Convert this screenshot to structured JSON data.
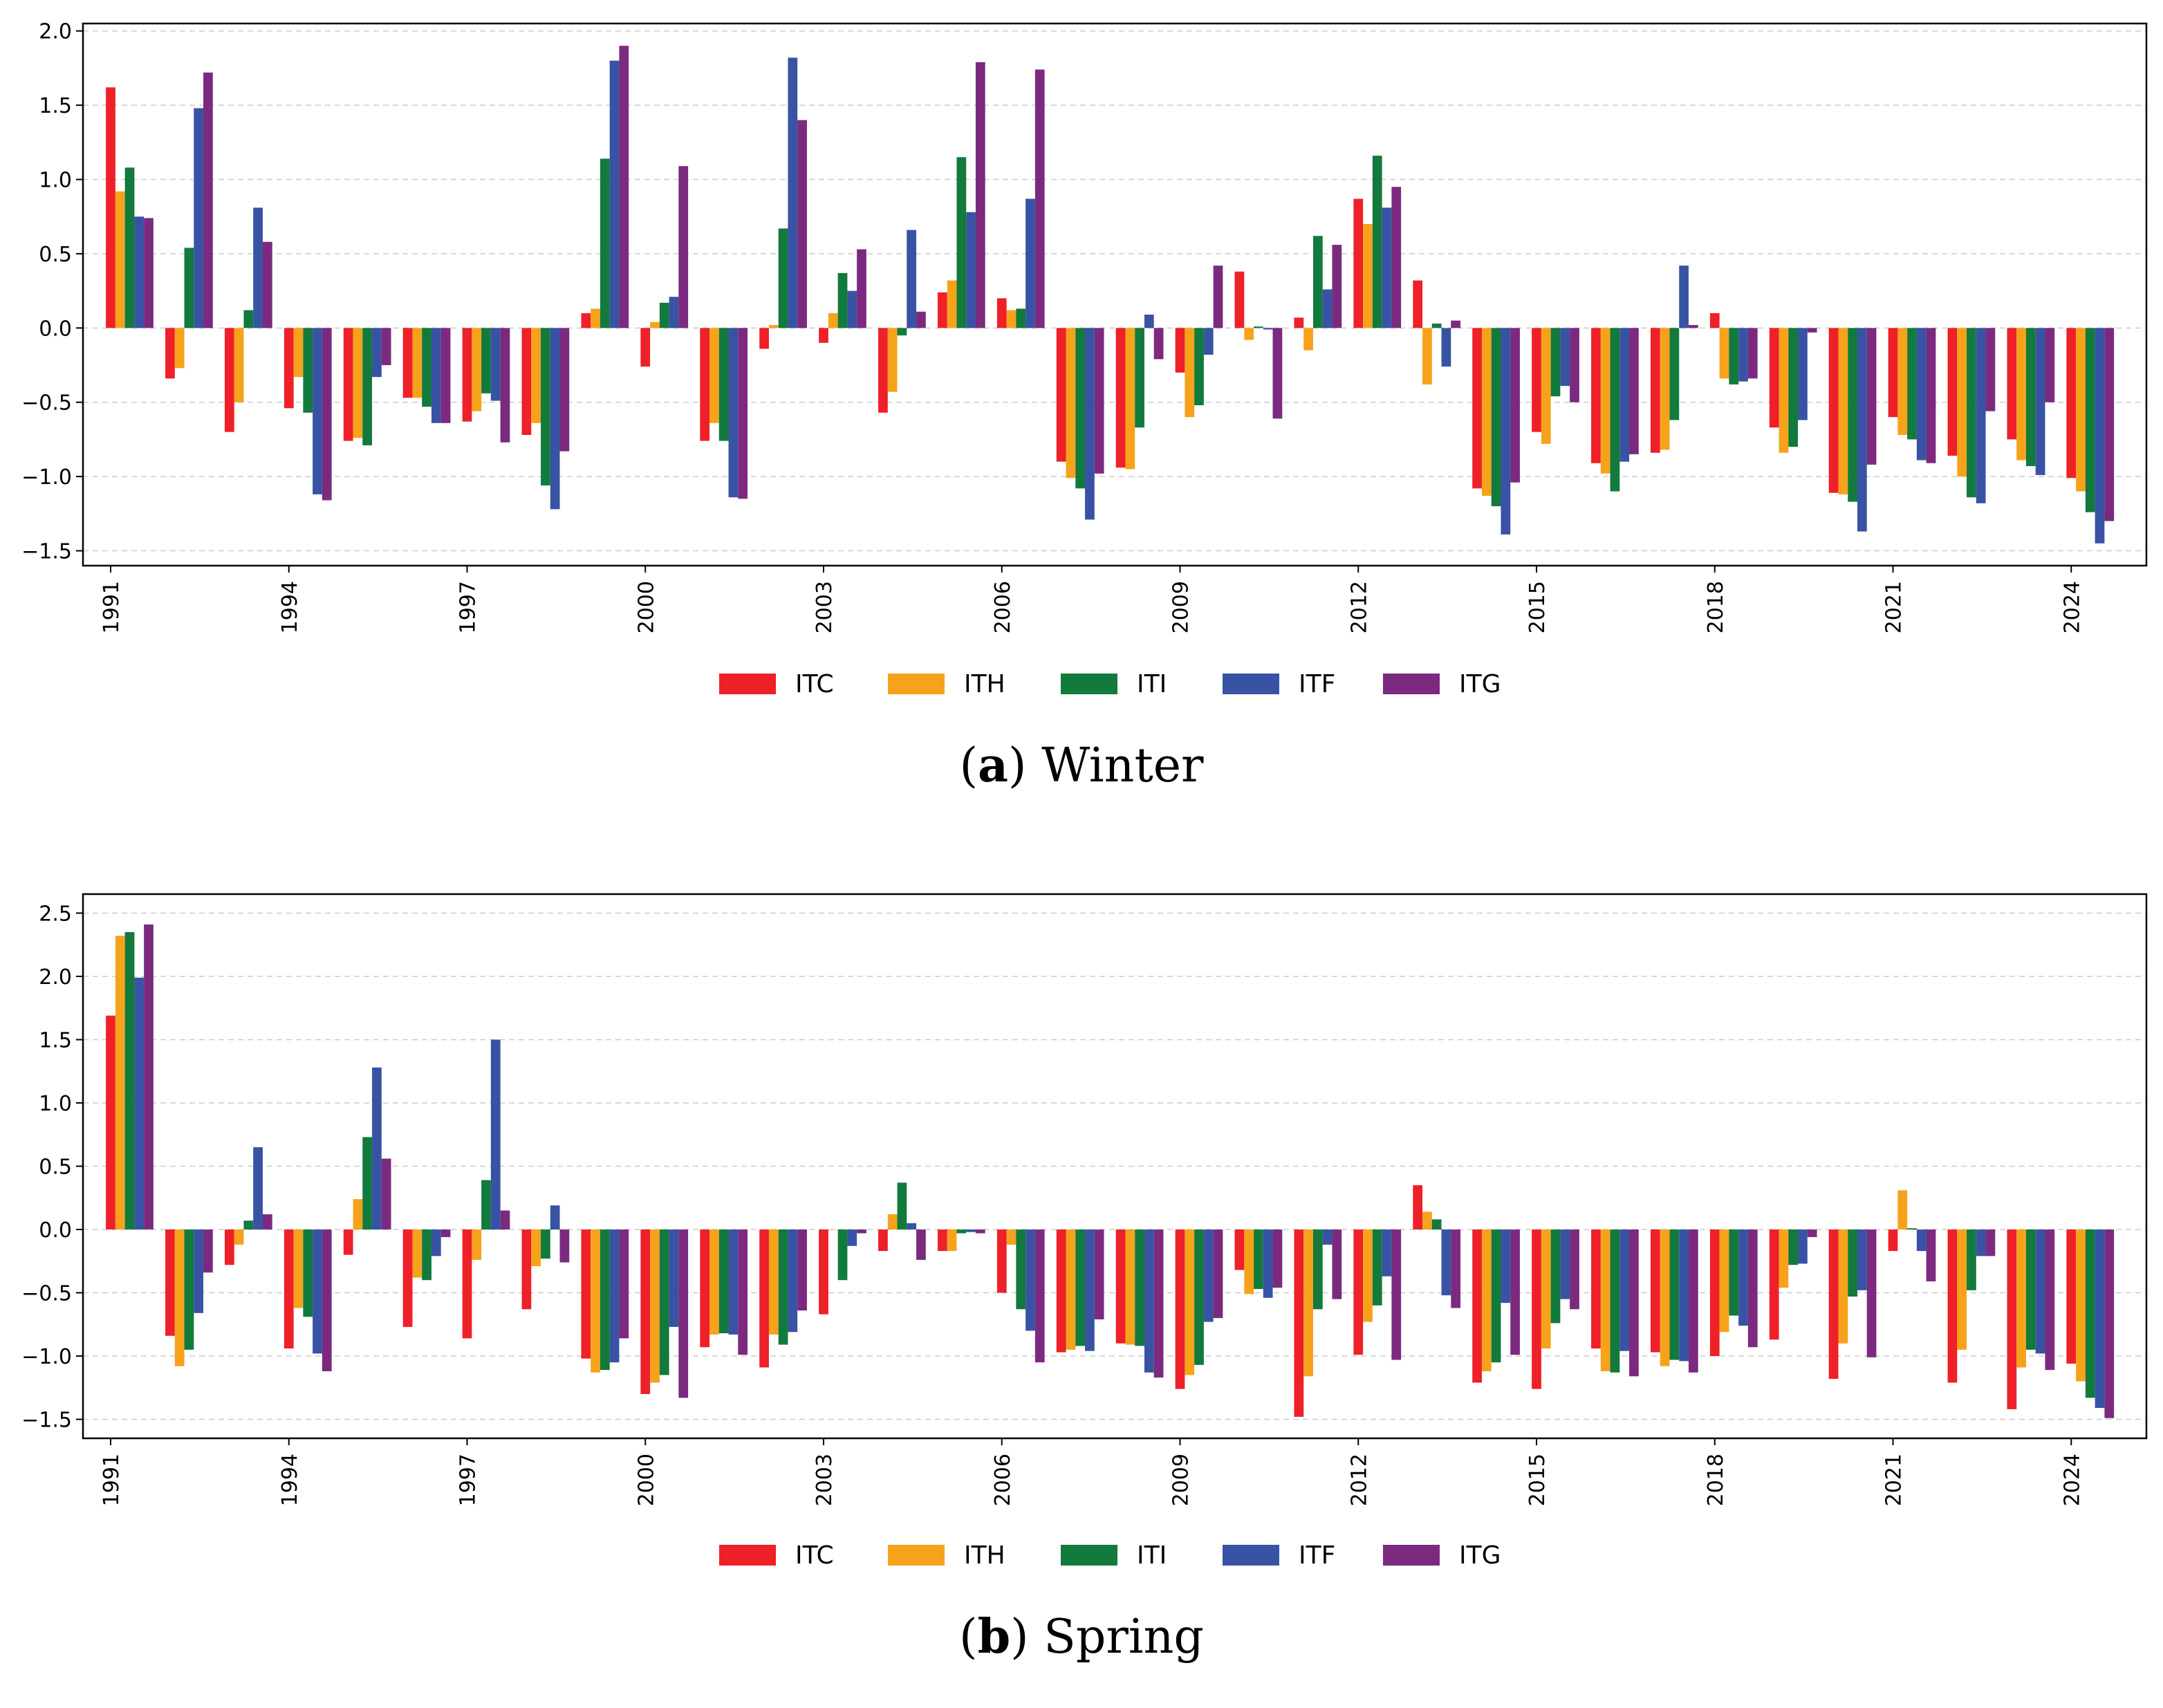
{
  "colors": {
    "ITC": "#ee2028",
    "ITH": "#f7a21b",
    "ITI": "#117a3c",
    "ITF": "#3853a4",
    "ITG": "#7b2a7f",
    "grid": "#cccccc",
    "axis": "#000000"
  },
  "chart_data": [
    {
      "type": "bar",
      "title": "",
      "caption_letter": "a",
      "caption_text": "Winter",
      "caption_open": "(",
      "caption_close": ")",
      "xlabel": "",
      "ylabel": "",
      "ylim": [
        -1.6,
        2.05
      ],
      "yticks": [
        -1.5,
        -1.0,
        -0.5,
        0.0,
        0.5,
        1.0,
        1.5,
        2.0
      ],
      "ytick_labels": [
        "−1.5",
        "−1.0",
        "−0.5",
        "0.0",
        "0.5",
        "1.0",
        "1.5",
        "2.0"
      ],
      "grid": true,
      "legend": "bottom-center",
      "categories": [
        1991,
        1992,
        1993,
        1994,
        1995,
        1996,
        1997,
        1998,
        1999,
        2000,
        2001,
        2002,
        2003,
        2004,
        2005,
        2006,
        2007,
        2008,
        2009,
        2010,
        2011,
        2012,
        2013,
        2014,
        2015,
        2016,
        2017,
        2018,
        2019,
        2020,
        2021,
        2022,
        2023,
        2024
      ],
      "xtick_labels": [
        "1991",
        "1994",
        "1997",
        "2000",
        "2003",
        "2006",
        "2009",
        "2012",
        "2015",
        "2018",
        "2021",
        "2024"
      ],
      "series": [
        {
          "name": "ITC",
          "values": [
            1.62,
            -0.34,
            -0.7,
            -0.54,
            -0.76,
            -0.47,
            -0.63,
            -0.72,
            0.1,
            -0.26,
            -0.76,
            -0.14,
            -0.1,
            -0.57,
            0.24,
            0.2,
            -0.9,
            -0.94,
            -0.3,
            0.38,
            0.07,
            0.87,
            0.32,
            -1.08,
            -0.7,
            -0.91,
            -0.84,
            0.1,
            -0.67,
            -1.11,
            -0.6,
            -0.86,
            -0.75,
            -1.01
          ]
        },
        {
          "name": "ITH",
          "values": [
            0.92,
            -0.27,
            -0.5,
            -0.33,
            -0.74,
            -0.47,
            -0.56,
            -0.64,
            0.13,
            0.04,
            -0.64,
            0.02,
            0.1,
            -0.43,
            0.32,
            0.12,
            -1.01,
            -0.95,
            -0.6,
            -0.08,
            -0.15,
            0.7,
            -0.38,
            -1.13,
            -0.78,
            -0.98,
            -0.82,
            -0.34,
            -0.84,
            -1.12,
            -0.72,
            -1.0,
            -0.89,
            -1.1
          ]
        },
        {
          "name": "ITI",
          "values": [
            1.08,
            0.54,
            0.12,
            -0.57,
            -0.79,
            -0.53,
            -0.44,
            -1.06,
            1.14,
            0.17,
            -0.76,
            0.67,
            0.37,
            -0.05,
            1.15,
            0.13,
            -1.08,
            -0.67,
            -0.52,
            0.01,
            0.62,
            1.16,
            0.03,
            -1.2,
            -0.46,
            -1.1,
            -0.62,
            -0.38,
            -0.8,
            -1.17,
            -0.75,
            -1.14,
            -0.93,
            -1.24
          ]
        },
        {
          "name": "ITF",
          "values": [
            0.75,
            1.48,
            0.81,
            -1.12,
            -0.33,
            -0.64,
            -0.49,
            -1.22,
            1.8,
            0.21,
            -1.14,
            1.82,
            0.25,
            0.66,
            0.78,
            0.87,
            -1.29,
            0.09,
            -0.18,
            -0.01,
            0.26,
            0.81,
            -0.26,
            -1.39,
            -0.39,
            -0.9,
            0.42,
            -0.36,
            -0.62,
            -1.37,
            -0.89,
            -1.18,
            -0.99,
            -1.45
          ]
        },
        {
          "name": "ITG",
          "values": [
            0.74,
            1.72,
            0.58,
            -1.16,
            -0.25,
            -0.64,
            -0.77,
            -0.83,
            1.9,
            1.09,
            -1.15,
            1.4,
            0.53,
            0.11,
            1.79,
            1.74,
            -0.98,
            -0.21,
            0.42,
            -0.61,
            0.56,
            0.95,
            0.05,
            -1.04,
            -0.5,
            -0.85,
            0.02,
            -0.34,
            -0.03,
            -0.92,
            -0.91,
            -0.56,
            -0.5,
            -1.3
          ]
        }
      ]
    },
    {
      "type": "bar",
      "title": "",
      "caption_letter": "b",
      "caption_text": "Spring",
      "caption_open": "(",
      "caption_close": ")",
      "xlabel": "",
      "ylabel": "",
      "ylim": [
        -1.65,
        2.65
      ],
      "yticks": [
        -1.5,
        -1.0,
        -0.5,
        0.0,
        0.5,
        1.0,
        1.5,
        2.0,
        2.5
      ],
      "ytick_labels": [
        "−1.5",
        "−1.0",
        "−0.5",
        "0.0",
        "0.5",
        "1.0",
        "1.5",
        "2.0",
        "2.5"
      ],
      "grid": true,
      "legend": "bottom-center",
      "categories": [
        1991,
        1992,
        1993,
        1994,
        1995,
        1996,
        1997,
        1998,
        1999,
        2000,
        2001,
        2002,
        2003,
        2004,
        2005,
        2006,
        2007,
        2008,
        2009,
        2010,
        2011,
        2012,
        2013,
        2014,
        2015,
        2016,
        2017,
        2018,
        2019,
        2020,
        2021,
        2022,
        2023,
        2024
      ],
      "xtick_labels": [
        "1991",
        "1994",
        "1997",
        "2000",
        "2003",
        "2006",
        "2009",
        "2012",
        "2015",
        "2018",
        "2021",
        "2024"
      ],
      "series": [
        {
          "name": "ITC",
          "values": [
            1.69,
            -0.84,
            -0.28,
            -0.94,
            -0.2,
            -0.77,
            -0.86,
            -0.63,
            -1.02,
            -1.3,
            -0.93,
            -1.09,
            -0.67,
            -0.17,
            -0.17,
            -0.5,
            -0.97,
            -0.9,
            -1.26,
            -0.32,
            -1.48,
            -0.99,
            0.35,
            -1.21,
            -1.26,
            -0.94,
            -0.97,
            -1.0,
            -0.87,
            -1.18,
            -0.17,
            -1.21,
            -1.42,
            -1.06
          ]
        },
        {
          "name": "ITH",
          "values": [
            2.32,
            -1.08,
            -0.12,
            -0.62,
            0.24,
            -0.38,
            -0.24,
            -0.29,
            -1.13,
            -1.21,
            -0.83,
            -0.83,
            0.0,
            0.12,
            -0.17,
            -0.12,
            -0.95,
            -0.91,
            -1.15,
            -0.51,
            -1.16,
            -0.73,
            0.14,
            -1.12,
            -0.94,
            -1.12,
            -1.08,
            -0.81,
            -0.46,
            -0.9,
            0.31,
            -0.95,
            -1.09,
            -1.2
          ]
        },
        {
          "name": "ITI",
          "values": [
            2.35,
            -0.95,
            0.07,
            -0.69,
            0.73,
            -0.4,
            0.39,
            -0.23,
            -1.11,
            -1.15,
            -0.82,
            -0.91,
            -0.4,
            0.37,
            -0.03,
            -0.63,
            -0.92,
            -0.92,
            -1.07,
            -0.47,
            -0.63,
            -0.6,
            0.08,
            -1.05,
            -0.74,
            -1.13,
            -1.03,
            -0.68,
            -0.28,
            -0.53,
            0.01,
            -0.48,
            -0.95,
            -1.33
          ]
        },
        {
          "name": "ITF",
          "values": [
            1.99,
            -0.66,
            0.65,
            -0.98,
            1.28,
            -0.21,
            1.5,
            0.19,
            -1.05,
            -0.77,
            -0.83,
            -0.81,
            -0.13,
            0.05,
            -0.02,
            -0.8,
            -0.96,
            -1.13,
            -0.73,
            -0.54,
            -0.12,
            -0.37,
            -0.52,
            -0.58,
            -0.55,
            -0.96,
            -1.04,
            -0.76,
            -0.27,
            -0.48,
            -0.17,
            -0.21,
            -0.98,
            -1.41
          ]
        },
        {
          "name": "ITG",
          "values": [
            2.41,
            -0.34,
            0.12,
            -1.12,
            0.56,
            -0.06,
            0.15,
            -0.26,
            -0.86,
            -1.33,
            -0.99,
            -0.64,
            -0.03,
            -0.24,
            -0.03,
            -1.05,
            -0.71,
            -1.17,
            -0.7,
            -0.46,
            -0.55,
            -1.03,
            -0.62,
            -0.99,
            -0.63,
            -1.16,
            -1.13,
            -0.93,
            -0.06,
            -1.01,
            -0.41,
            -0.21,
            -1.11,
            -1.49
          ]
        }
      ]
    }
  ]
}
